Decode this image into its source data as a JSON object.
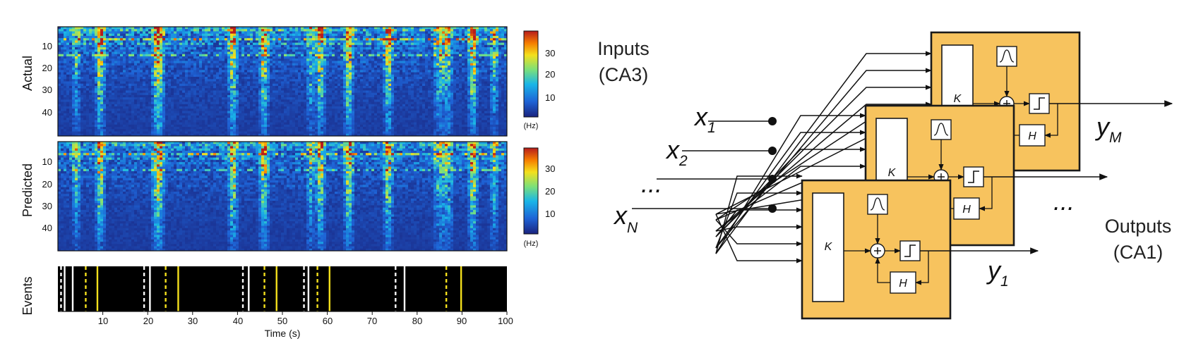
{
  "left_figure": {
    "panels": [
      {
        "label": "Actual",
        "y_ticks": [
          "10",
          "20",
          "30",
          "40"
        ],
        "colorbar_ticks": [
          "30",
          "20",
          "10"
        ],
        "colorbar_unit": "(Hz)"
      },
      {
        "label": "Predicted",
        "y_ticks": [
          "10",
          "20",
          "30",
          "40"
        ],
        "colorbar_ticks": [
          "30",
          "20",
          "10"
        ],
        "colorbar_unit": "(Hz)"
      }
    ],
    "events_label": "Events",
    "x_ticks": [
      "10",
      "20",
      "30",
      "40",
      "50",
      "60",
      "70",
      "80",
      "90",
      "100"
    ],
    "x_axis_title": "Time (s)",
    "colors": {
      "heat_low": "#1a237e",
      "heat_mid": "#1e88e5",
      "heat_high": "#d50000",
      "event_white": "#ffffff",
      "event_yellow": "#f4e01c",
      "events_bg": "#000000"
    }
  },
  "diagram": {
    "inputs_label": [
      "Inputs",
      "(CA3)"
    ],
    "outputs_label": [
      "Outputs",
      "(CA1)"
    ],
    "input_vars": [
      {
        "base": "x",
        "sub": "1"
      },
      {
        "base": "x",
        "sub": "2"
      },
      {
        "base": "x",
        "sub": "N"
      }
    ],
    "input_ellipsis": "...",
    "output_vars": [
      {
        "base": "y",
        "sub": "M"
      },
      {
        "base": "y",
        "sub": "1"
      }
    ],
    "output_ellipsis": "...",
    "block_letters": {
      "kernel": "K",
      "feedback": "H"
    },
    "colors": {
      "block_fill": "#f7c35e",
      "block_stroke": "#1a1a1a"
    }
  }
}
